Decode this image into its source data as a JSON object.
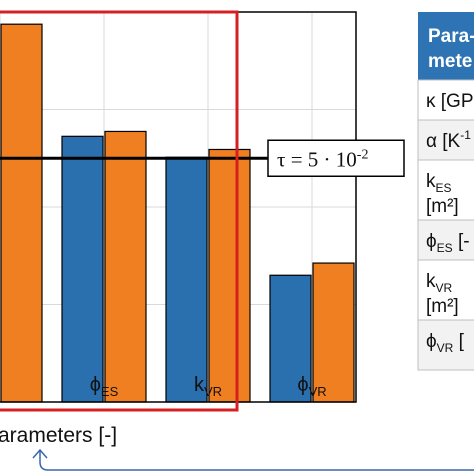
{
  "chart_data": {
    "type": "bar",
    "categories": [
      "",
      "ϕES",
      "kVR",
      "ϕVR"
    ],
    "tick_labels": [
      {
        "main": "",
        "sub": ""
      },
      {
        "main": "ϕ",
        "sub": "ES"
      },
      {
        "main": "k",
        "sub": "VR"
      },
      {
        "main": "ϕ",
        "sub": "VR"
      }
    ],
    "series": [
      {
        "values": [
          0.0,
          0.0545,
          0.0502,
          0.026
        ]
      },
      {
        "values": [
          0.0775,
          0.0555,
          0.0518,
          0.0285
        ]
      }
    ],
    "series_colors": [
      "#2a6fae",
      "#f07f22"
    ],
    "ylim": [
      0,
      0.08
    ],
    "grid": true,
    "xlabel": "arameters [-]",
    "threshold": {
      "value": 0.05,
      "label_main": "τ = 5 · 10",
      "label_exp": "-2",
      "color": "#000000"
    },
    "highlight_box_color": "#d42020"
  },
  "side_table": {
    "header_color": "#2e74b5",
    "header_lines": [
      "Para-",
      "mete"
    ],
    "rows": [
      {
        "main": "κ [GP",
        "sub": "",
        "sup": "",
        "tail": "",
        "line2": ""
      },
      {
        "main": "α [K",
        "sub": "",
        "sup": "-1",
        "tail": "",
        "line2": ""
      },
      {
        "main": "k",
        "sub": "ES",
        "sup": "",
        "tail": "",
        "line2": "[m²]"
      },
      {
        "main": "ϕ",
        "sub": "ES",
        "sup": "",
        "tail": " [-",
        "line2": ""
      },
      {
        "main": "k",
        "sub": "VR",
        "sup": "",
        "tail": "",
        "line2": "[m²]"
      },
      {
        "main": "ϕ",
        "sub": "VR",
        "sup": "",
        "tail": " [",
        "line2": ""
      }
    ]
  }
}
